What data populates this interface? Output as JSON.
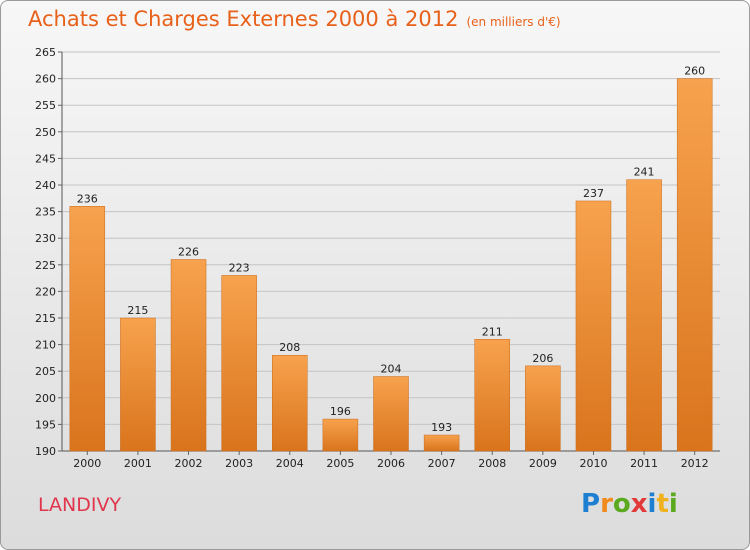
{
  "header": {
    "title": "Achats et Charges Externes 2000 à 2012",
    "unit": "(en milliers d'€)"
  },
  "region": "LANDIVY",
  "logo": {
    "text": "Proxiti",
    "letters": [
      "P",
      "r",
      "o",
      "x",
      "i",
      "t",
      "i"
    ]
  },
  "colors": {
    "bar_light": "#f7a24e",
    "bar_dark": "#d9741c",
    "title": "#e8611a",
    "region": "#e0354d"
  },
  "chart_data": {
    "type": "bar",
    "categories": [
      "2000",
      "2001",
      "2002",
      "2003",
      "2004",
      "2005",
      "2006",
      "2007",
      "2008",
      "2009",
      "2010",
      "2011",
      "2012"
    ],
    "values": [
      236,
      215,
      226,
      223,
      208,
      196,
      204,
      193,
      211,
      206,
      237,
      241,
      260
    ],
    "data_labels": [
      "236",
      "215",
      "226",
      "223",
      "208",
      "196",
      "204",
      "193",
      "211",
      "206",
      "237",
      "241",
      "260"
    ],
    "title": "Achats et Charges Externes 2000 à 2012",
    "xlabel": "",
    "ylabel": "",
    "ylim": [
      190,
      265
    ],
    "yticks": [
      "190",
      "195",
      "200",
      "205",
      "210",
      "215",
      "220",
      "225",
      "230",
      "235",
      "240",
      "245",
      "250",
      "255",
      "260",
      "265"
    ],
    "grid": true,
    "legend": "none"
  }
}
